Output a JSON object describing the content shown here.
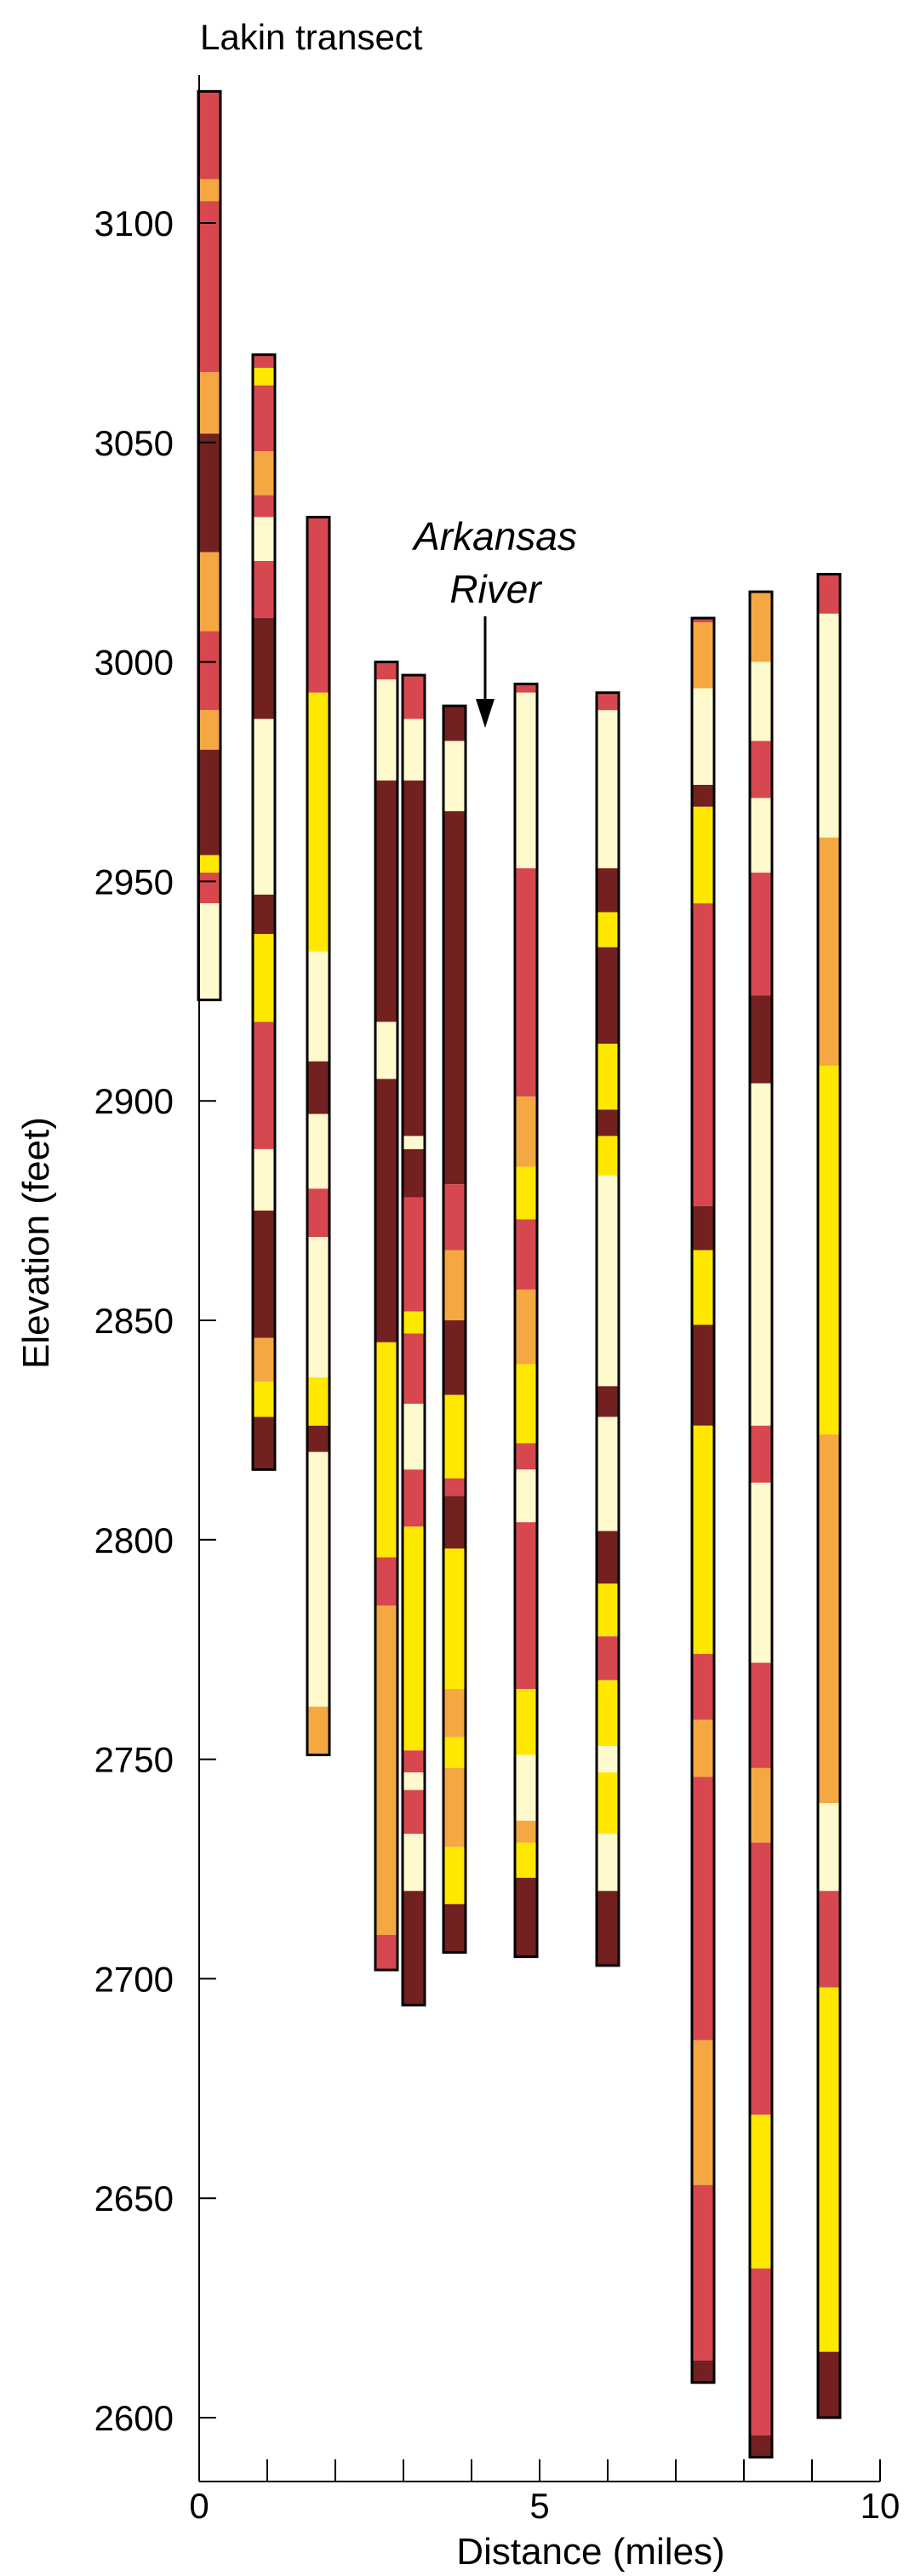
{
  "chart_data": {
    "type": "bar",
    "title": "Lakin transect",
    "xlabel": "Distance (miles)",
    "ylabel": "Elevation (feet)",
    "xlim": [
      0,
      10
    ],
    "ylim": [
      2585,
      3130
    ],
    "x_major_ticks": [
      0,
      5,
      10
    ],
    "x_minor_ticks": [
      1,
      2,
      3,
      4,
      6,
      7,
      8,
      9
    ],
    "y_ticks": [
      2600,
      2650,
      2700,
      2750,
      2800,
      2850,
      2900,
      2950,
      3000,
      3050,
      3100
    ],
    "x_tick_labels": [
      "0",
      "5",
      "10"
    ],
    "y_tick_labels": [
      "2600",
      "2650",
      "2700",
      "2750",
      "2800",
      "2850",
      "2900",
      "2950",
      "3000",
      "3050",
      "3100"
    ],
    "grid": false,
    "annotation": {
      "lines": [
        "Arkansas",
        "River"
      ],
      "x": 4.2,
      "arrow_from": 2993,
      "arrow_to": 2985
    },
    "colors": {
      "light_cream": "#FFFACD",
      "yellow": "#FFE800",
      "orange": "#F5A742",
      "red": "#D7474F",
      "dark_brown": "#722020",
      "outline": "#000000"
    },
    "wells": [
      {
        "x": 0.15,
        "top": 3130,
        "bottom": 2923,
        "segments": [
          {
            "from": 3130,
            "to": 3110,
            "color": "red"
          },
          {
            "from": 3110,
            "to": 3105,
            "color": "orange"
          },
          {
            "from": 3105,
            "to": 3066,
            "color": "red"
          },
          {
            "from": 3066,
            "to": 3052,
            "color": "orange"
          },
          {
            "from": 3052,
            "to": 3025,
            "color": "dark_brown"
          },
          {
            "from": 3025,
            "to": 3007,
            "color": "orange"
          },
          {
            "from": 3007,
            "to": 2989,
            "color": "red"
          },
          {
            "from": 2989,
            "to": 2980,
            "color": "orange"
          },
          {
            "from": 2980,
            "to": 2956,
            "color": "dark_brown"
          },
          {
            "from": 2956,
            "to": 2952,
            "color": "yellow"
          },
          {
            "from": 2952,
            "to": 2945,
            "color": "red"
          },
          {
            "from": 2945,
            "to": 2923,
            "color": "light_cream"
          }
        ]
      },
      {
        "x": 0.95,
        "top": 3070,
        "bottom": 2816,
        "segments": [
          {
            "from": 3070,
            "to": 3067,
            "color": "red"
          },
          {
            "from": 3067,
            "to": 3063,
            "color": "yellow"
          },
          {
            "from": 3063,
            "to": 3048,
            "color": "red"
          },
          {
            "from": 3048,
            "to": 3038,
            "color": "orange"
          },
          {
            "from": 3038,
            "to": 3033,
            "color": "red"
          },
          {
            "from": 3033,
            "to": 3023,
            "color": "light_cream"
          },
          {
            "from": 3023,
            "to": 3010,
            "color": "red"
          },
          {
            "from": 3010,
            "to": 2987,
            "color": "dark_brown"
          },
          {
            "from": 2987,
            "to": 2947,
            "color": "light_cream"
          },
          {
            "from": 2947,
            "to": 2938,
            "color": "dark_brown"
          },
          {
            "from": 2938,
            "to": 2918,
            "color": "yellow"
          },
          {
            "from": 2918,
            "to": 2889,
            "color": "red"
          },
          {
            "from": 2889,
            "to": 2875,
            "color": "light_cream"
          },
          {
            "from": 2875,
            "to": 2846,
            "color": "dark_brown"
          },
          {
            "from": 2846,
            "to": 2836,
            "color": "orange"
          },
          {
            "from": 2836,
            "to": 2828,
            "color": "yellow"
          },
          {
            "from": 2828,
            "to": 2816,
            "color": "dark_brown"
          }
        ]
      },
      {
        "x": 1.75,
        "top": 3033,
        "bottom": 2751,
        "segments": [
          {
            "from": 3033,
            "to": 2993,
            "color": "red"
          },
          {
            "from": 2993,
            "to": 2934,
            "color": "yellow"
          },
          {
            "from": 2934,
            "to": 2909,
            "color": "light_cream"
          },
          {
            "from": 2909,
            "to": 2897,
            "color": "dark_brown"
          },
          {
            "from": 2897,
            "to": 2880,
            "color": "light_cream"
          },
          {
            "from": 2880,
            "to": 2869,
            "color": "red"
          },
          {
            "from": 2869,
            "to": 2837,
            "color": "light_cream"
          },
          {
            "from": 2837,
            "to": 2826,
            "color": "yellow"
          },
          {
            "from": 2826,
            "to": 2820,
            "color": "dark_brown"
          },
          {
            "from": 2820,
            "to": 2762,
            "color": "light_cream"
          },
          {
            "from": 2762,
            "to": 2751,
            "color": "orange"
          }
        ]
      },
      {
        "x": 2.75,
        "top": 3000,
        "bottom": 2702,
        "segments": [
          {
            "from": 3000,
            "to": 2996,
            "color": "red"
          },
          {
            "from": 2996,
            "to": 2973,
            "color": "light_cream"
          },
          {
            "from": 2973,
            "to": 2918,
            "color": "dark_brown"
          },
          {
            "from": 2918,
            "to": 2905,
            "color": "light_cream"
          },
          {
            "from": 2905,
            "to": 2845,
            "color": "dark_brown"
          },
          {
            "from": 2845,
            "to": 2796,
            "color": "yellow"
          },
          {
            "from": 2796,
            "to": 2785,
            "color": "red"
          },
          {
            "from": 2785,
            "to": 2710,
            "color": "orange"
          },
          {
            "from": 2710,
            "to": 2702,
            "color": "red"
          }
        ]
      },
      {
        "x": 3.15,
        "top": 2997,
        "bottom": 2694,
        "segments": [
          {
            "from": 2997,
            "to": 2987,
            "color": "red"
          },
          {
            "from": 2987,
            "to": 2973,
            "color": "light_cream"
          },
          {
            "from": 2973,
            "to": 2892,
            "color": "dark_brown"
          },
          {
            "from": 2892,
            "to": 2889,
            "color": "light_cream"
          },
          {
            "from": 2889,
            "to": 2878,
            "color": "dark_brown"
          },
          {
            "from": 2878,
            "to": 2852,
            "color": "red"
          },
          {
            "from": 2852,
            "to": 2847,
            "color": "yellow"
          },
          {
            "from": 2847,
            "to": 2831,
            "color": "red"
          },
          {
            "from": 2831,
            "to": 2816,
            "color": "light_cream"
          },
          {
            "from": 2816,
            "to": 2803,
            "color": "red"
          },
          {
            "from": 2803,
            "to": 2752,
            "color": "yellow"
          },
          {
            "from": 2752,
            "to": 2747,
            "color": "red"
          },
          {
            "from": 2747,
            "to": 2743,
            "color": "light_cream"
          },
          {
            "from": 2743,
            "to": 2733,
            "color": "red"
          },
          {
            "from": 2733,
            "to": 2720,
            "color": "light_cream"
          },
          {
            "from": 2720,
            "to": 2694,
            "color": "dark_brown"
          }
        ]
      },
      {
        "x": 3.75,
        "top": 2990,
        "bottom": 2706,
        "segments": [
          {
            "from": 2990,
            "to": 2982,
            "color": "dark_brown"
          },
          {
            "from": 2982,
            "to": 2966,
            "color": "light_cream"
          },
          {
            "from": 2966,
            "to": 2881,
            "color": "dark_brown"
          },
          {
            "from": 2881,
            "to": 2866,
            "color": "red"
          },
          {
            "from": 2866,
            "to": 2850,
            "color": "orange"
          },
          {
            "from": 2850,
            "to": 2833,
            "color": "dark_brown"
          },
          {
            "from": 2833,
            "to": 2814,
            "color": "yellow"
          },
          {
            "from": 2814,
            "to": 2810,
            "color": "red"
          },
          {
            "from": 2810,
            "to": 2798,
            "color": "dark_brown"
          },
          {
            "from": 2798,
            "to": 2766,
            "color": "yellow"
          },
          {
            "from": 2766,
            "to": 2755,
            "color": "orange"
          },
          {
            "from": 2755,
            "to": 2748,
            "color": "yellow"
          },
          {
            "from": 2748,
            "to": 2730,
            "color": "orange"
          },
          {
            "from": 2730,
            "to": 2717,
            "color": "yellow"
          },
          {
            "from": 2717,
            "to": 2706,
            "color": "dark_brown"
          }
        ]
      },
      {
        "x": 4.8,
        "top": 2995,
        "bottom": 2705,
        "segments": [
          {
            "from": 2995,
            "to": 2993,
            "color": "red"
          },
          {
            "from": 2993,
            "to": 2953,
            "color": "light_cream"
          },
          {
            "from": 2953,
            "to": 2901,
            "color": "red"
          },
          {
            "from": 2901,
            "to": 2885,
            "color": "orange"
          },
          {
            "from": 2885,
            "to": 2873,
            "color": "yellow"
          },
          {
            "from": 2873,
            "to": 2857,
            "color": "red"
          },
          {
            "from": 2857,
            "to": 2840,
            "color": "orange"
          },
          {
            "from": 2840,
            "to": 2822,
            "color": "yellow"
          },
          {
            "from": 2822,
            "to": 2816,
            "color": "red"
          },
          {
            "from": 2816,
            "to": 2804,
            "color": "light_cream"
          },
          {
            "from": 2804,
            "to": 2766,
            "color": "red"
          },
          {
            "from": 2766,
            "to": 2751,
            "color": "yellow"
          },
          {
            "from": 2751,
            "to": 2736,
            "color": "light_cream"
          },
          {
            "from": 2736,
            "to": 2731,
            "color": "orange"
          },
          {
            "from": 2731,
            "to": 2723,
            "color": "yellow"
          },
          {
            "from": 2723,
            "to": 2705,
            "color": "dark_brown"
          }
        ]
      },
      {
        "x": 6.0,
        "top": 2993,
        "bottom": 2703,
        "segments": [
          {
            "from": 2993,
            "to": 2989,
            "color": "red"
          },
          {
            "from": 2989,
            "to": 2953,
            "color": "light_cream"
          },
          {
            "from": 2953,
            "to": 2943,
            "color": "dark_brown"
          },
          {
            "from": 2943,
            "to": 2935,
            "color": "yellow"
          },
          {
            "from": 2935,
            "to": 2913,
            "color": "dark_brown"
          },
          {
            "from": 2913,
            "to": 2898,
            "color": "yellow"
          },
          {
            "from": 2898,
            "to": 2892,
            "color": "dark_brown"
          },
          {
            "from": 2892,
            "to": 2883,
            "color": "yellow"
          },
          {
            "from": 2883,
            "to": 2835,
            "color": "light_cream"
          },
          {
            "from": 2835,
            "to": 2828,
            "color": "dark_brown"
          },
          {
            "from": 2828,
            "to": 2802,
            "color": "light_cream"
          },
          {
            "from": 2802,
            "to": 2790,
            "color": "dark_brown"
          },
          {
            "from": 2790,
            "to": 2778,
            "color": "yellow"
          },
          {
            "from": 2778,
            "to": 2768,
            "color": "red"
          },
          {
            "from": 2768,
            "to": 2753,
            "color": "yellow"
          },
          {
            "from": 2753,
            "to": 2747,
            "color": "light_cream"
          },
          {
            "from": 2747,
            "to": 2733,
            "color": "yellow"
          },
          {
            "from": 2733,
            "to": 2720,
            "color": "light_cream"
          },
          {
            "from": 2720,
            "to": 2703,
            "color": "dark_brown"
          }
        ]
      },
      {
        "x": 7.4,
        "top": 3010,
        "bottom": 2608,
        "segments": [
          {
            "from": 3010,
            "to": 3009,
            "color": "red"
          },
          {
            "from": 3009,
            "to": 2994,
            "color": "orange"
          },
          {
            "from": 2994,
            "to": 2972,
            "color": "light_cream"
          },
          {
            "from": 2972,
            "to": 2967,
            "color": "dark_brown"
          },
          {
            "from": 2967,
            "to": 2945,
            "color": "yellow"
          },
          {
            "from": 2945,
            "to": 2876,
            "color": "red"
          },
          {
            "from": 2876,
            "to": 2866,
            "color": "dark_brown"
          },
          {
            "from": 2866,
            "to": 2849,
            "color": "yellow"
          },
          {
            "from": 2849,
            "to": 2826,
            "color": "dark_brown"
          },
          {
            "from": 2826,
            "to": 2774,
            "color": "yellow"
          },
          {
            "from": 2774,
            "to": 2759,
            "color": "red"
          },
          {
            "from": 2759,
            "to": 2746,
            "color": "orange"
          },
          {
            "from": 2746,
            "to": 2686,
            "color": "red"
          },
          {
            "from": 2686,
            "to": 2653,
            "color": "orange"
          },
          {
            "from": 2653,
            "to": 2613,
            "color": "red"
          },
          {
            "from": 2613,
            "to": 2608,
            "color": "dark_brown"
          }
        ]
      },
      {
        "x": 8.25,
        "top": 3016,
        "bottom": 2591,
        "segments": [
          {
            "from": 3016,
            "to": 3000,
            "color": "orange"
          },
          {
            "from": 3000,
            "to": 2982,
            "color": "light_cream"
          },
          {
            "from": 2982,
            "to": 2969,
            "color": "red"
          },
          {
            "from": 2969,
            "to": 2952,
            "color": "light_cream"
          },
          {
            "from": 2952,
            "to": 2924,
            "color": "red"
          },
          {
            "from": 2924,
            "to": 2904,
            "color": "dark_brown"
          },
          {
            "from": 2904,
            "to": 2826,
            "color": "light_cream"
          },
          {
            "from": 2826,
            "to": 2813,
            "color": "red"
          },
          {
            "from": 2813,
            "to": 2772,
            "color": "light_cream"
          },
          {
            "from": 2772,
            "to": 2748,
            "color": "red"
          },
          {
            "from": 2748,
            "to": 2731,
            "color": "orange"
          },
          {
            "from": 2731,
            "to": 2669,
            "color": "red"
          },
          {
            "from": 2669,
            "to": 2634,
            "color": "yellow"
          },
          {
            "from": 2634,
            "to": 2596,
            "color": "red"
          },
          {
            "from": 2596,
            "to": 2591,
            "color": "dark_brown"
          }
        ]
      },
      {
        "x": 9.25,
        "top": 3020,
        "bottom": 2600,
        "segments": [
          {
            "from": 3020,
            "to": 3011,
            "color": "red"
          },
          {
            "from": 3011,
            "to": 2960,
            "color": "light_cream"
          },
          {
            "from": 2960,
            "to": 2908,
            "color": "orange"
          },
          {
            "from": 2908,
            "to": 2824,
            "color": "yellow"
          },
          {
            "from": 2824,
            "to": 2740,
            "color": "orange"
          },
          {
            "from": 2740,
            "to": 2720,
            "color": "light_cream"
          },
          {
            "from": 2720,
            "to": 2698,
            "color": "red"
          },
          {
            "from": 2698,
            "to": 2615,
            "color": "yellow"
          },
          {
            "from": 2615,
            "to": 2600,
            "color": "dark_brown"
          }
        ]
      }
    ]
  }
}
